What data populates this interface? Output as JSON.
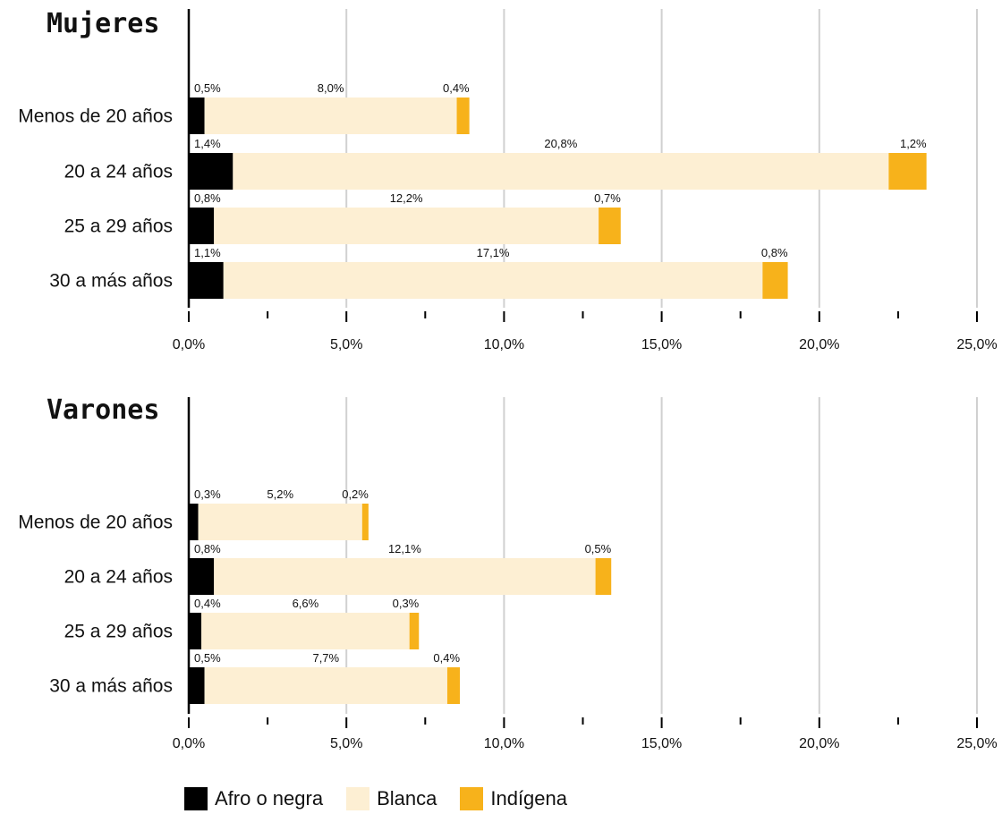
{
  "chart_data": [
    {
      "type": "bar",
      "orientation": "horizontal",
      "stacked": true,
      "title": "Mujeres",
      "categories": [
        "Menos de 20 años",
        "20 a 24 años",
        "25 a 29 años",
        "30 a más años"
      ],
      "series": [
        {
          "name": "Afro o negra",
          "values": [
            0.5,
            1.4,
            0.8,
            1.1
          ],
          "labels": [
            "0,5%",
            "1,4%",
            "0,8%",
            "1,1%"
          ]
        },
        {
          "name": "Blanca",
          "values": [
            8.0,
            20.8,
            12.2,
            17.1
          ],
          "labels": [
            "8,0%",
            "20,8%",
            "12,2%",
            "17,1%"
          ]
        },
        {
          "name": "Indígena",
          "values": [
            0.4,
            1.2,
            0.7,
            0.8
          ],
          "labels": [
            "0,4%",
            "1,2%",
            "0,7%",
            "0,8%"
          ]
        }
      ],
      "xlim": [
        0,
        25
      ],
      "xticks": [
        "0,0%",
        "5,0%",
        "10,0%",
        "15,0%",
        "20,0%",
        "25,0%"
      ],
      "grid": true
    },
    {
      "type": "bar",
      "orientation": "horizontal",
      "stacked": true,
      "title": "Varones",
      "categories": [
        "Menos de 20 años",
        "20 a 24 años",
        "25 a 29 años",
        "30 a más años"
      ],
      "series": [
        {
          "name": "Afro o negra",
          "values": [
            0.3,
            0.8,
            0.4,
            0.5
          ],
          "labels": [
            "0,3%",
            "0,8%",
            "0,4%",
            "0,5%"
          ]
        },
        {
          "name": "Blanca",
          "values": [
            5.2,
            12.1,
            6.6,
            7.7
          ],
          "labels": [
            "5,2%",
            "12,1%",
            "6,6%",
            "7,7%"
          ]
        },
        {
          "name": "Indígena",
          "values": [
            0.2,
            0.5,
            0.3,
            0.4
          ],
          "labels": [
            "0,2%",
            "0,5%",
            "0,3%",
            "0,4%"
          ]
        }
      ],
      "xlim": [
        0,
        25
      ],
      "xticks": [
        "0,0%",
        "5,0%",
        "10,0%",
        "15,0%",
        "20,0%",
        "25,0%"
      ],
      "grid": true
    }
  ],
  "legend": {
    "placement": "bottom-left",
    "items": [
      {
        "label": "Afro o negra",
        "color": "#000000"
      },
      {
        "label": "Blanca",
        "color": "#fdefd3"
      },
      {
        "label": "Indígena",
        "color": "#f7b21b"
      }
    ]
  },
  "colors": {
    "afro": "#000000",
    "blanca": "#fdefd3",
    "indigena": "#f7b21b",
    "grid": "#d0d0d0",
    "axis": "#000000"
  }
}
